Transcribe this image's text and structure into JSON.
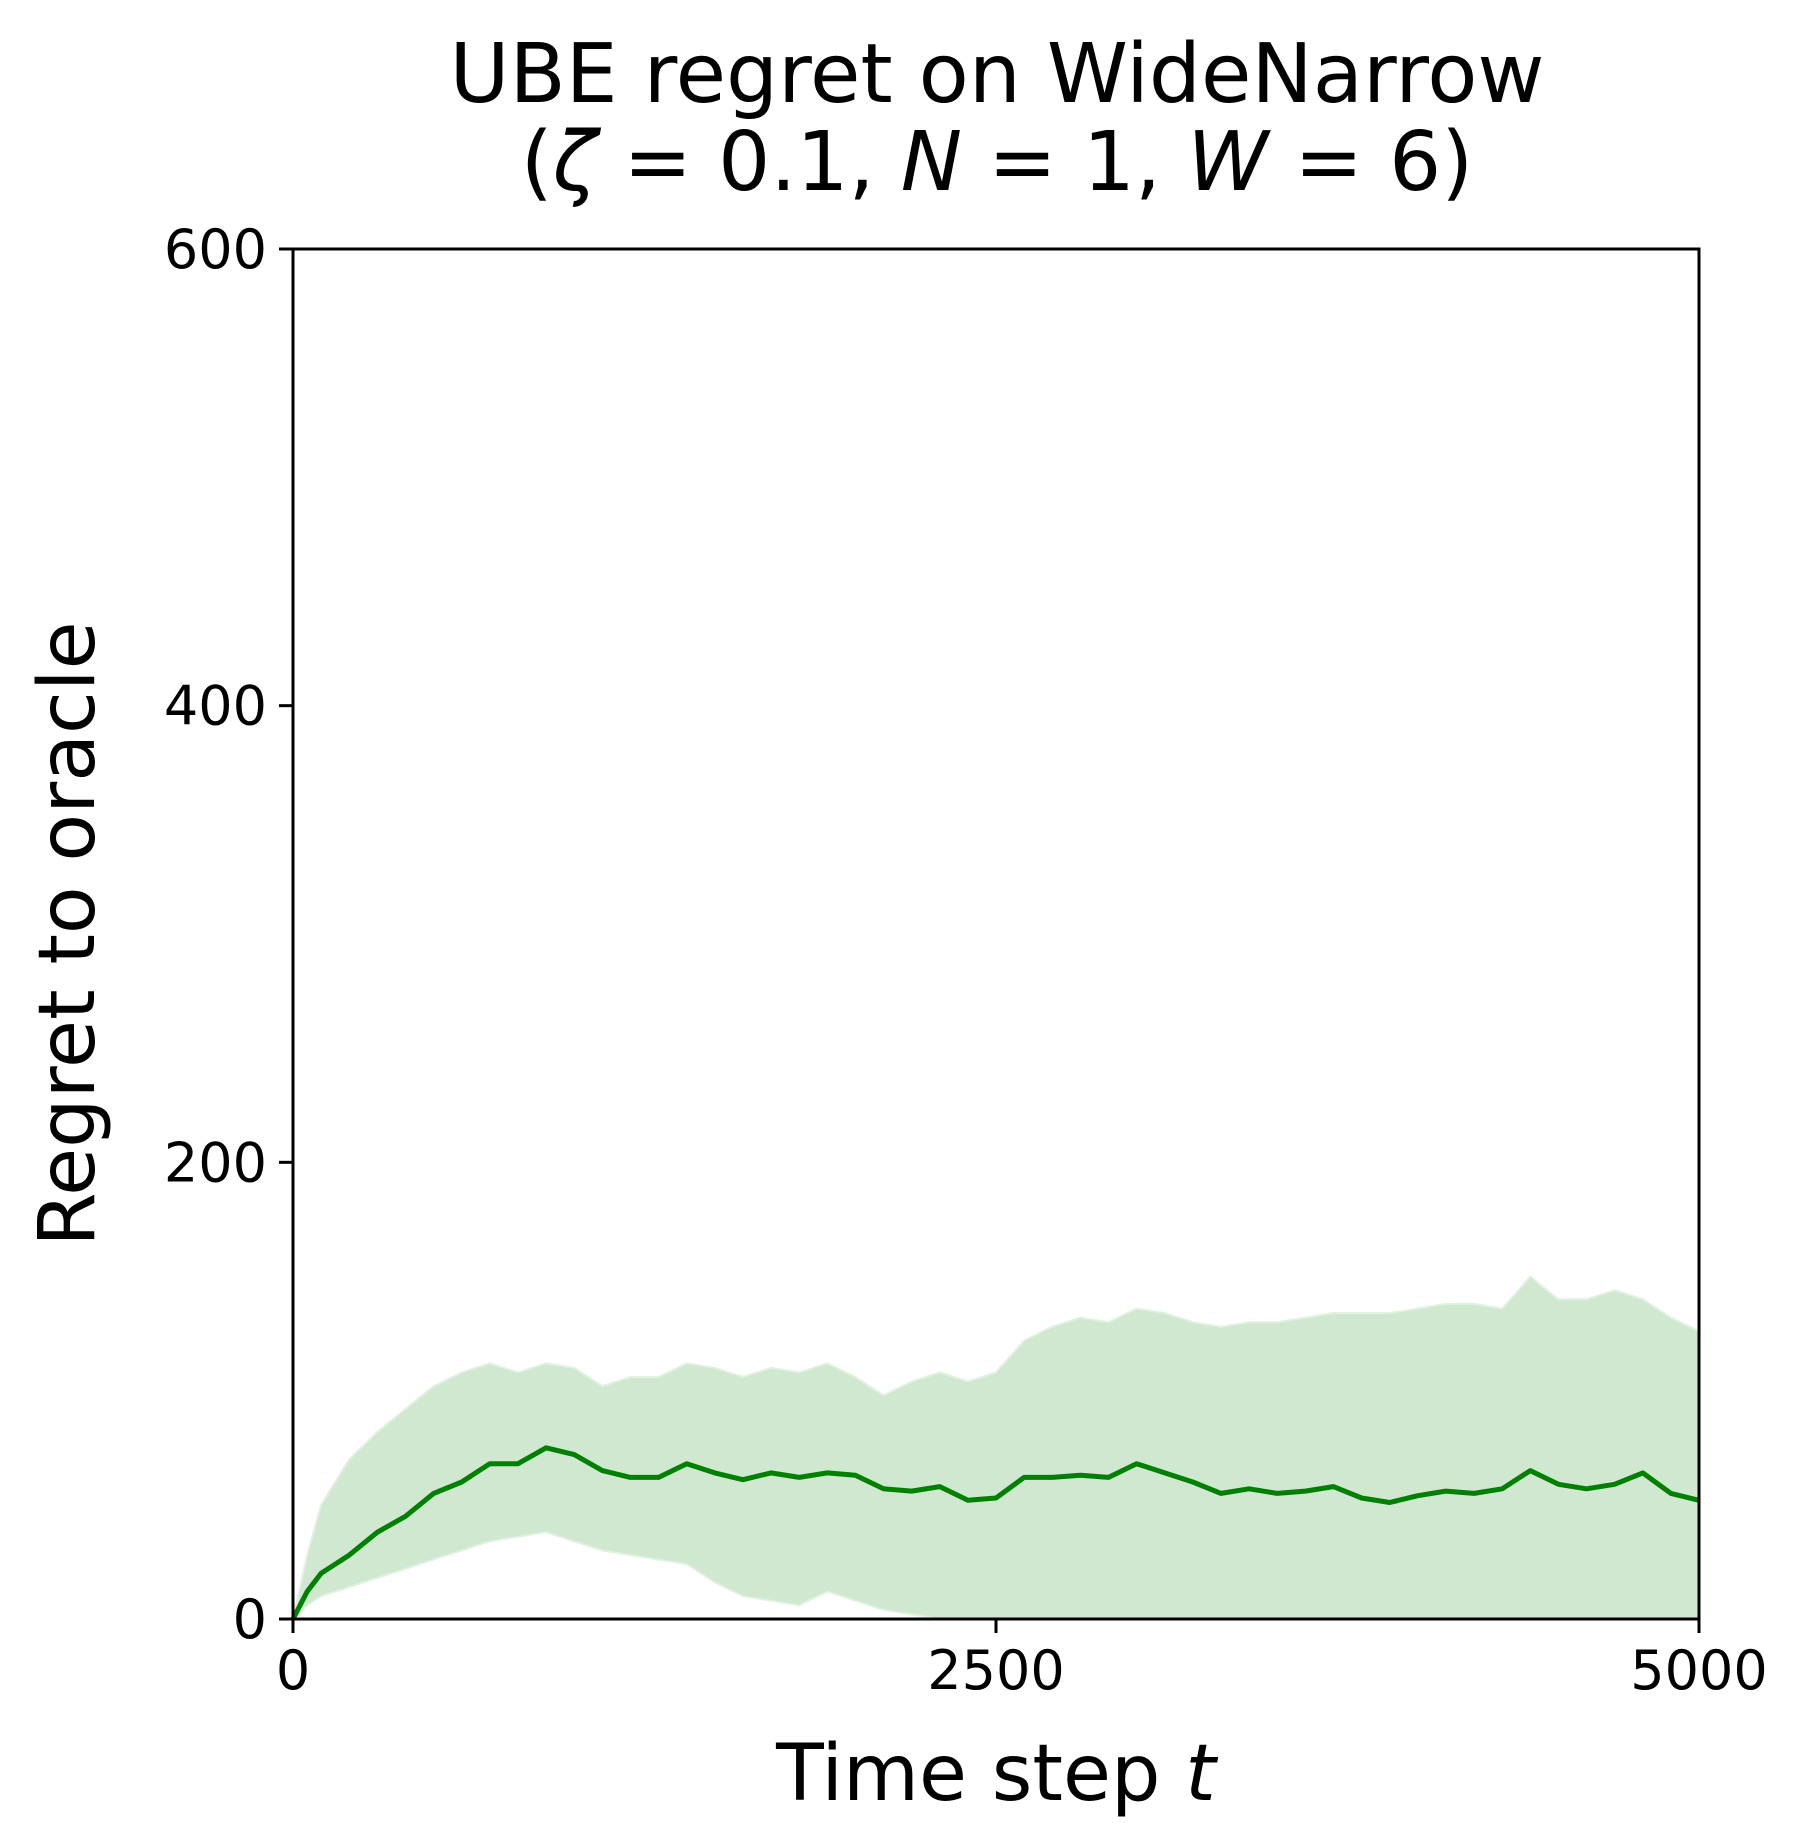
{
  "chart_data": {
    "type": "line",
    "title_line1": "UBE regret on WideNarrow",
    "title_line2": {
      "open": "(",
      "zeta_symbol": "ζ",
      "zeta_eq": " = 0.1, ",
      "n_symbol": "N",
      "n_eq": " = 1, ",
      "w_symbol": "W",
      "w_eq": " = 6)"
    },
    "xlabel": "Time step ",
    "xlabel_var": "t",
    "ylabel": "Regret to oracle",
    "xlim": [
      0,
      5000
    ],
    "ylim": [
      0,
      600
    ],
    "xticks": [
      0,
      2500,
      5000
    ],
    "yticks": [
      0,
      200,
      400,
      600
    ],
    "grid": false,
    "line_color": "#008000",
    "band_color": "#cfe8cf",
    "series": [
      {
        "x": [
          0,
          50,
          100,
          200,
          300,
          400,
          500,
          600,
          700,
          800,
          900,
          1000,
          1100,
          1200,
          1300,
          1400,
          1500,
          1600,
          1700,
          1800,
          1900,
          2000,
          2100,
          2200,
          2300,
          2400,
          2500,
          2600,
          2700,
          2800,
          2900,
          3000,
          3100,
          3200,
          3300,
          3400,
          3500,
          3600,
          3700,
          3800,
          3900,
          4000,
          4100,
          4200,
          4300,
          4400,
          4500,
          4600,
          4700,
          4800,
          4900,
          5000
        ],
        "mean": [
          0,
          12,
          20,
          28,
          38,
          45,
          55,
          60,
          68,
          68,
          75,
          72,
          65,
          62,
          62,
          68,
          64,
          61,
          64,
          62,
          64,
          63,
          57,
          56,
          58,
          52,
          53,
          62,
          62,
          63,
          62,
          68,
          64,
          60,
          55,
          57,
          55,
          56,
          58,
          53,
          51,
          54,
          56,
          55,
          57,
          65,
          59,
          57,
          59,
          64,
          55,
          52
        ],
        "upper": [
          0,
          28,
          50,
          70,
          82,
          92,
          102,
          108,
          112,
          108,
          112,
          110,
          102,
          106,
          106,
          112,
          110,
          106,
          110,
          108,
          112,
          106,
          98,
          104,
          108,
          104,
          108,
          122,
          128,
          132,
          130,
          136,
          134,
          130,
          128,
          130,
          130,
          132,
          134,
          134,
          134,
          136,
          138,
          138,
          136,
          150,
          140,
          140,
          144,
          140,
          132,
          126
        ],
        "lower": [
          0,
          6,
          10,
          14,
          18,
          22,
          26,
          30,
          34,
          36,
          38,
          34,
          30,
          28,
          26,
          24,
          16,
          10,
          8,
          6,
          12,
          8,
          4,
          2,
          0,
          0,
          0,
          0,
          0,
          0,
          0,
          0,
          0,
          0,
          0,
          0,
          0,
          0,
          0,
          0,
          0,
          0,
          0,
          0,
          0,
          0,
          0,
          0,
          0,
          0,
          0,
          0
        ]
      }
    ]
  }
}
